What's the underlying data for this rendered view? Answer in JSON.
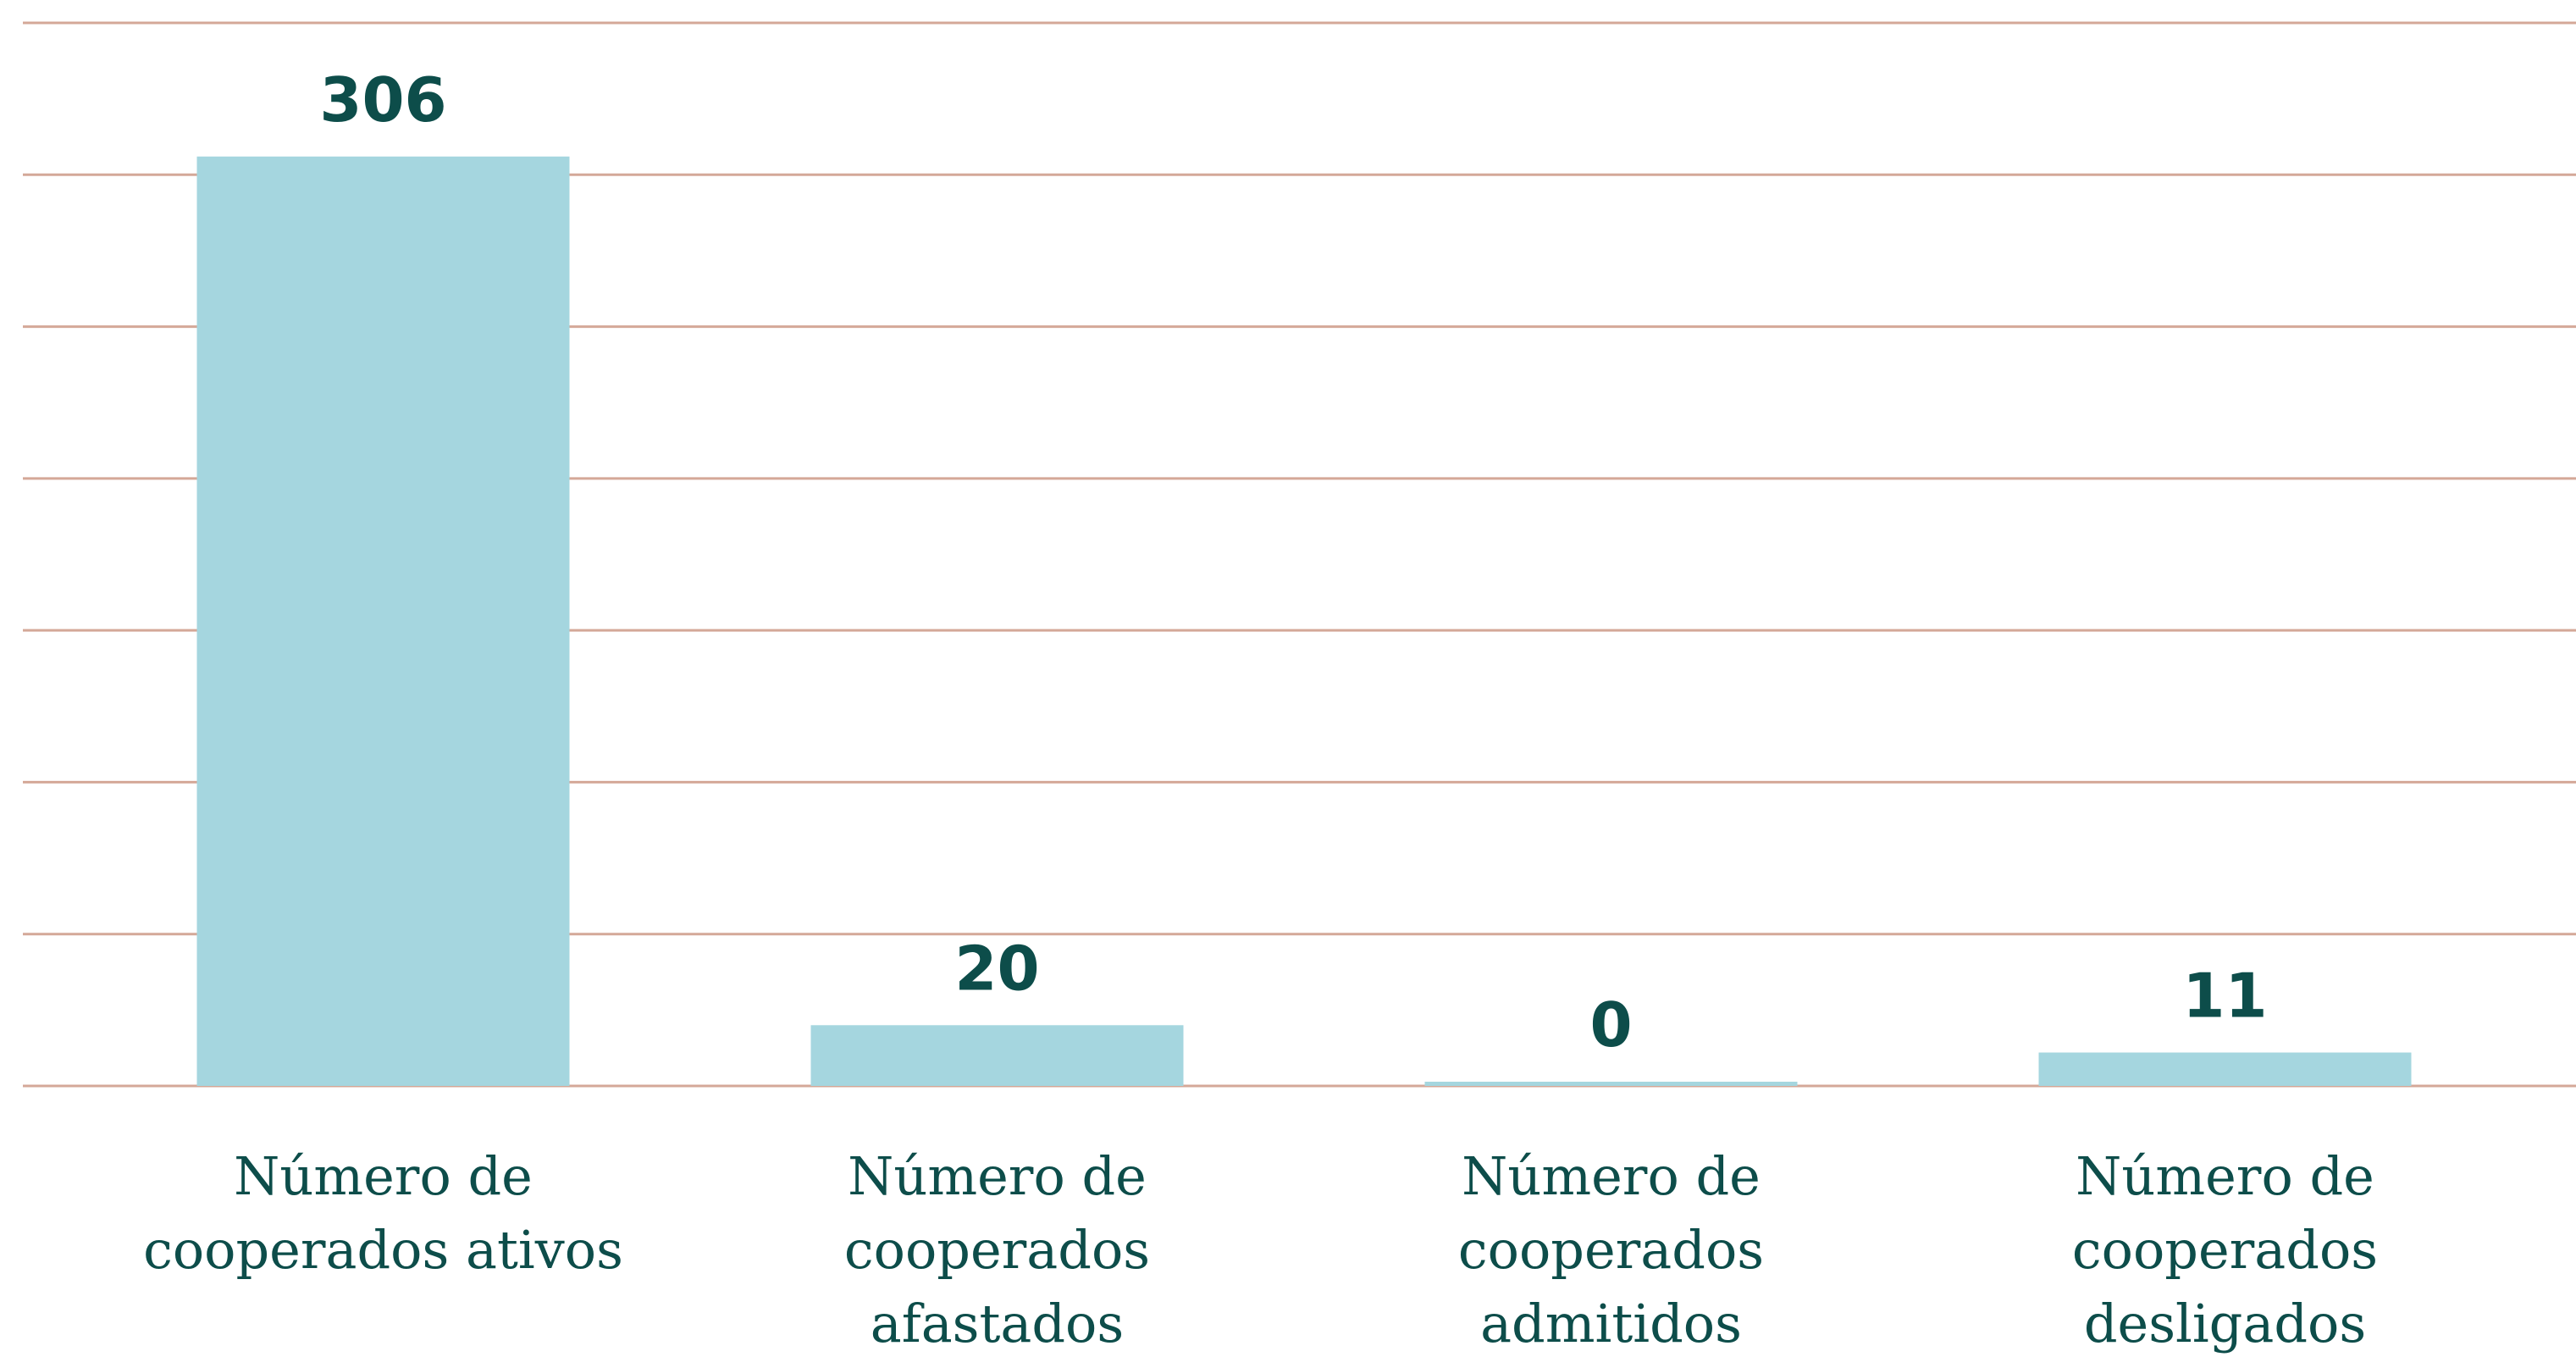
{
  "chart_data": {
    "type": "bar",
    "categories": [
      "Número de cooperados ativos",
      "Número de cooperados afastados",
      "Número de cooperados admitidos",
      "Número de cooperados desligados"
    ],
    "values": [
      306,
      20,
      0,
      11
    ],
    "color": "#a5d6df",
    "ylim": [
      0,
      350
    ],
    "yticks": [
      0,
      50,
      100,
      150,
      200,
      250,
      300,
      350
    ],
    "grid": true
  }
}
